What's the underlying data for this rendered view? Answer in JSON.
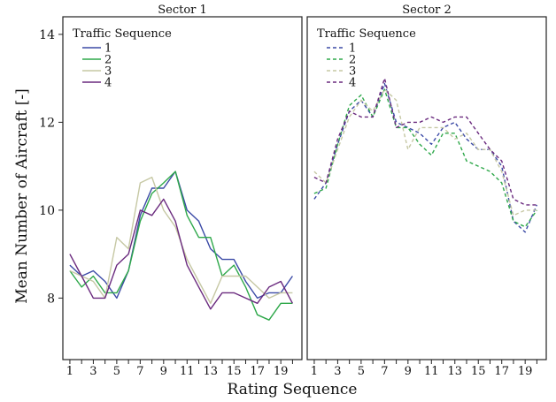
{
  "chart_data": {
    "type": "line",
    "ylabel": "Mean Number of Aircraft [-]",
    "xlabel": "Rating Sequence",
    "x": [
      1,
      2,
      3,
      4,
      5,
      6,
      7,
      8,
      9,
      10,
      11,
      12,
      13,
      14,
      15,
      16,
      17,
      18,
      19,
      20
    ],
    "x_ticks": [
      "1",
      "3",
      "5",
      "7",
      "9",
      "11",
      "13",
      "15",
      "17",
      "19"
    ],
    "y_ticks": [
      "8",
      "10",
      "12",
      "14"
    ],
    "ylim": [
      6.6,
      14.4
    ],
    "xlim": [
      0.4,
      20.8
    ],
    "grid": false,
    "legend_title": "Traffic Sequence",
    "legend_position": "top-left",
    "panels": [
      {
        "title": "Sector 1",
        "line_style": "solid",
        "series": [
          {
            "name": "1",
            "color": "#3b4aa6",
            "values": [
              8.75,
              8.5,
              8.62,
              8.38,
              8.0,
              8.62,
              9.88,
              10.5,
              10.5,
              10.88,
              10.0,
              9.75,
              9.12,
              8.88,
              8.88,
              8.38,
              8.0,
              8.12,
              8.12,
              8.5
            ]
          },
          {
            "name": "2",
            "color": "#2ea84a",
            "values": [
              8.62,
              8.25,
              8.5,
              8.12,
              8.12,
              8.62,
              9.75,
              10.38,
              10.62,
              10.88,
              9.88,
              9.38,
              9.38,
              8.5,
              8.75,
              8.25,
              7.62,
              7.5,
              7.88,
              7.88
            ]
          },
          {
            "name": "3",
            "color": "#c6c8a4",
            "values": [
              8.62,
              8.5,
              8.38,
              8.0,
              9.38,
              9.12,
              10.62,
              10.75,
              10.0,
              9.62,
              8.88,
              8.38,
              7.88,
              8.5,
              8.5,
              8.5,
              8.25,
              8.0,
              8.12,
              8.12
            ]
          },
          {
            "name": "4",
            "color": "#6a2a7e",
            "values": [
              9.0,
              8.5,
              8.0,
              8.0,
              8.75,
              9.0,
              10.0,
              9.88,
              10.25,
              9.75,
              8.75,
              8.25,
              7.75,
              8.12,
              8.12,
              8.0,
              7.88,
              8.25,
              8.38,
              7.88
            ]
          }
        ]
      },
      {
        "title": "Sector 2",
        "line_style": "dashed",
        "series": [
          {
            "name": "1",
            "color": "#3b4aa6",
            "values": [
              10.25,
              10.62,
              11.5,
              12.25,
              12.5,
              12.12,
              12.88,
              12.0,
              11.88,
              11.75,
              11.5,
              11.88,
              12.0,
              11.62,
              11.38,
              11.38,
              11.0,
              9.75,
              9.5,
              10.12
            ]
          },
          {
            "name": "2",
            "color": "#2ea84a",
            "values": [
              10.38,
              10.5,
              11.5,
              12.38,
              12.62,
              12.12,
              12.75,
              11.88,
              11.88,
              11.5,
              11.25,
              11.75,
              11.75,
              11.12,
              11.0,
              10.88,
              10.62,
              9.75,
              9.62,
              10.0
            ]
          },
          {
            "name": "3",
            "color": "#c6c8a4",
            "values": [
              10.88,
              10.62,
              11.38,
              12.12,
              12.5,
              12.25,
              12.75,
              12.5,
              11.38,
              11.88,
              11.88,
              11.88,
              11.62,
              11.75,
              11.38,
              11.38,
              10.88,
              9.88,
              10.0,
              10.0
            ]
          },
          {
            "name": "4",
            "color": "#6a2a7e",
            "values": [
              10.75,
              10.62,
              11.62,
              12.25,
              12.12,
              12.12,
              13.0,
              11.88,
              12.0,
              12.0,
              12.12,
              12.0,
              12.12,
              12.12,
              11.75,
              11.38,
              11.12,
              10.25,
              10.12,
              10.12
            ]
          }
        ]
      }
    ]
  }
}
